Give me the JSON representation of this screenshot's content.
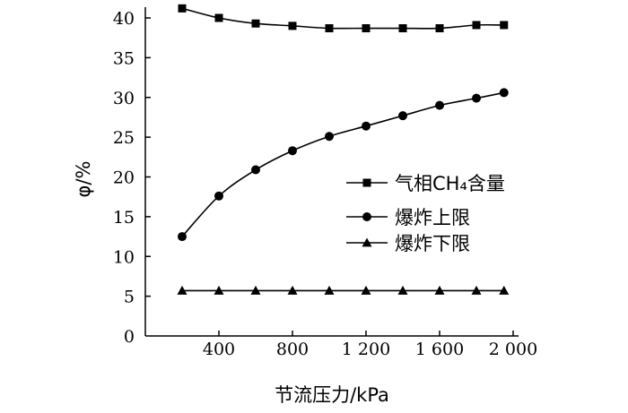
{
  "chart_data": {
    "type": "line",
    "xlabel": "节流压力/kPa",
    "ylabel": "φ/%",
    "xlim": [
      0,
      2000
    ],
    "ylim": [
      0,
      42
    ],
    "x_ticks": [
      400,
      800,
      1200,
      1600,
      2000
    ],
    "x_tick_labels": [
      "400",
      "800",
      "1 200",
      "1 600",
      "2 000"
    ],
    "y_ticks": [
      0,
      5,
      10,
      15,
      20,
      25,
      30,
      35,
      40
    ],
    "y_tick_labels": [
      "0",
      "5",
      "10",
      "15",
      "20",
      "25",
      "30",
      "35",
      "40"
    ],
    "grid": false,
    "legend_position": "right",
    "x": [
      200,
      400,
      600,
      800,
      1000,
      1200,
      1400,
      1600,
      1800,
      1950
    ],
    "series": [
      {
        "name": "气相CH₄含量",
        "marker": "square",
        "values": [
          41.2,
          40.0,
          39.3,
          39.0,
          38.7,
          38.7,
          38.7,
          38.7,
          39.1,
          39.1
        ]
      },
      {
        "name": "爆炸上限",
        "marker": "circle",
        "values": [
          12.5,
          17.6,
          20.9,
          23.3,
          25.1,
          26.4,
          27.7,
          29.0,
          29.9,
          30.6
        ]
      },
      {
        "name": "爆炸下限",
        "marker": "triangle",
        "values": [
          5.7,
          5.7,
          5.7,
          5.7,
          5.7,
          5.7,
          5.7,
          5.7,
          5.7,
          5.7
        ]
      }
    ]
  }
}
